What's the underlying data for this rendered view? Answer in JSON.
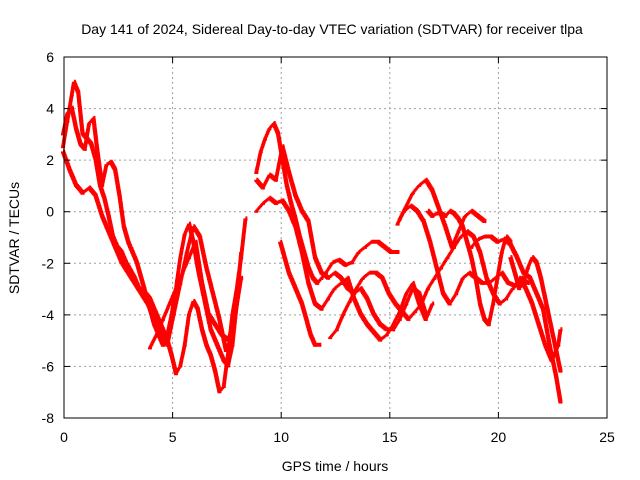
{
  "chart_data": {
    "type": "scatter",
    "title": "Day 141 of 2024, Sidereal Day-to-day VTEC variation (SDTVAR) for receiver tlpa",
    "xlabel": "GPS time / hours",
    "ylabel": "SDTVAR / TECUs",
    "xlim": [
      0,
      25
    ],
    "ylim": [
      -8,
      6
    ],
    "xticks": [
      0,
      5,
      10,
      15,
      20,
      25
    ],
    "yticks": [
      -8,
      -6,
      -4,
      -2,
      0,
      2,
      4,
      6
    ],
    "grid": true,
    "marker": "plus",
    "color": "#ff0000",
    "series": [
      {
        "name": "track-1",
        "x": [
          0.0,
          0.2,
          0.4,
          0.5,
          0.7,
          0.9,
          1.1,
          1.3,
          1.5,
          1.7,
          1.9,
          2.1,
          2.3,
          2.5,
          2.7,
          2.9,
          3.1,
          3.3,
          3.5,
          3.8,
          4.0,
          4.2,
          4.4,
          4.6,
          4.8,
          5.0,
          5.2,
          5.4,
          5.6,
          5.8,
          6.0,
          6.2,
          6.4,
          6.6,
          6.8,
          7.0,
          7.2,
          7.4,
          7.6,
          7.8,
          8.0,
          8.2,
          8.4
        ],
        "y": [
          2.5,
          3.5,
          4.5,
          5.0,
          4.6,
          3.0,
          2.8,
          2.6,
          2.0,
          1.0,
          0.5,
          -0.2,
          -1.0,
          -1.4,
          -1.6,
          -2.0,
          -2.3,
          -2.6,
          -3.0,
          -3.2,
          -3.4,
          -3.8,
          -4.2,
          -4.6,
          -5.0,
          -5.6,
          -6.3,
          -6.0,
          -5.2,
          -4.0,
          -3.5,
          -3.8,
          -4.6,
          -5.2,
          -5.6,
          -6.2,
          -7.0,
          -6.8,
          -5.5,
          -4.0,
          -3.0,
          -1.8,
          -0.3
        ]
      },
      {
        "name": "track-2",
        "x": [
          0.0,
          0.2,
          0.4,
          0.6,
          0.8,
          1.0,
          1.2,
          1.4,
          1.6,
          1.8,
          2.0,
          2.2,
          2.4,
          2.6,
          2.8,
          3.0,
          3.2,
          3.4,
          3.6,
          3.8,
          4.0,
          4.2,
          4.4,
          4.6,
          4.8,
          5.0,
          5.2,
          5.4,
          5.6,
          5.8,
          6.0,
          6.2,
          6.4,
          6.6,
          6.8,
          7.0,
          7.2,
          7.4,
          7.6,
          7.8,
          8.0,
          8.2
        ],
        "y": [
          3.0,
          3.8,
          4.0,
          3.2,
          2.6,
          2.4,
          3.4,
          3.6,
          2.2,
          1.0,
          1.8,
          1.9,
          1.6,
          0.6,
          -0.6,
          -1.2,
          -1.6,
          -2.0,
          -2.6,
          -3.2,
          -3.8,
          -4.4,
          -4.8,
          -5.2,
          -4.8,
          -4.0,
          -3.0,
          -1.8,
          -0.9,
          -0.5,
          -1.2,
          -2.2,
          -3.0,
          -3.8,
          -4.6,
          -5.0,
          -5.4,
          -5.8,
          -6.0,
          -5.2,
          -3.6,
          -1.6
        ]
      },
      {
        "name": "track-3",
        "x": [
          0.0,
          0.3,
          0.6,
          0.9,
          1.2,
          1.5,
          1.8,
          2.1,
          2.4,
          2.7,
          3.0,
          3.3,
          3.6,
          3.9,
          4.2,
          4.5,
          4.8,
          5.1,
          5.4,
          5.7,
          6.0,
          6.3,
          6.6,
          6.9,
          7.2,
          7.5,
          7.8,
          8.1
        ],
        "y": [
          2.3,
          1.6,
          1.0,
          0.7,
          0.9,
          0.6,
          -0.2,
          -0.8,
          -1.4,
          -2.0,
          -2.4,
          -2.8,
          -3.2,
          -3.6,
          -4.2,
          -4.8,
          -5.2,
          -4.0,
          -2.8,
          -1.6,
          -0.6,
          -1.0,
          -2.2,
          -3.2,
          -4.2,
          -5.4,
          -4.8,
          -2.4
        ]
      },
      {
        "name": "track-4",
        "x": [
          4.0,
          4.3,
          4.6,
          4.9,
          5.2,
          5.5,
          5.8,
          6.1,
          6.4,
          6.7,
          7.0,
          7.3,
          7.6,
          7.9,
          8.2
        ],
        "y": [
          -5.3,
          -4.8,
          -4.2,
          -3.6,
          -3.0,
          -2.4,
          -1.8,
          -1.2,
          -2.8,
          -4.0,
          -4.4,
          -4.8,
          -5.0,
          -4.2,
          -2.6
        ]
      },
      {
        "name": "track-5",
        "x": [
          8.9,
          9.1,
          9.3,
          9.5,
          9.7,
          9.9,
          10.1,
          10.3,
          10.5,
          10.7,
          10.9,
          11.1,
          11.3,
          11.5,
          11.7,
          11.9,
          12.1,
          12.4,
          12.7,
          13.0,
          13.3,
          13.6,
          13.9,
          14.2,
          14.5,
          14.8,
          15.1,
          15.4
        ],
        "y": [
          1.5,
          2.3,
          2.8,
          3.2,
          3.4,
          3.0,
          2.0,
          1.0,
          0.3,
          -0.3,
          -1.0,
          -1.6,
          -2.2,
          -2.6,
          -2.8,
          -2.6,
          -2.4,
          -2.0,
          -1.9,
          -2.1,
          -2.0,
          -1.6,
          -1.4,
          -1.2,
          -1.2,
          -1.4,
          -1.6,
          -1.6
        ]
      },
      {
        "name": "track-6",
        "x": [
          8.9,
          9.2,
          9.5,
          9.8,
          10.1,
          10.4,
          10.7,
          11.0,
          11.3,
          11.6,
          11.9,
          12.2,
          12.5,
          12.8,
          13.1,
          13.4,
          13.7,
          14.0,
          14.3,
          14.6,
          14.9,
          15.2,
          15.5,
          15.8,
          16.1,
          16.4,
          16.7
        ],
        "y": [
          1.2,
          0.9,
          1.4,
          1.2,
          2.5,
          1.5,
          0.6,
          0.0,
          -0.4,
          -1.8,
          -2.4,
          -2.6,
          -2.4,
          -2.6,
          -3.0,
          -3.2,
          -3.0,
          -3.4,
          -4.0,
          -4.4,
          -4.6,
          -4.6,
          -4.2,
          -3.6,
          -3.0,
          -3.2,
          -4.0
        ]
      },
      {
        "name": "track-7",
        "x": [
          8.9,
          9.2,
          9.5,
          9.8,
          10.1,
          10.4,
          10.7,
          11.0,
          11.3,
          11.6,
          11.9,
          12.2,
          12.5,
          12.8,
          13.1,
          13.4,
          13.7,
          14.0,
          14.3,
          14.6,
          14.9,
          15.2,
          15.5,
          15.8,
          16.1,
          16.4,
          16.7,
          17.0
        ],
        "y": [
          0.0,
          0.3,
          0.5,
          0.3,
          0.4,
          0.0,
          -0.6,
          -1.6,
          -2.8,
          -3.6,
          -3.8,
          -3.4,
          -3.0,
          -2.8,
          -2.6,
          -3.4,
          -4.0,
          -4.4,
          -4.7,
          -5.0,
          -4.8,
          -4.4,
          -3.9,
          -3.2,
          -2.8,
          -3.6,
          -4.2,
          -3.6
        ]
      },
      {
        "name": "track-8",
        "x": [
          10.0,
          10.2,
          10.4,
          10.6,
          10.8,
          11.0,
          11.2,
          11.4,
          11.6,
          11.8
        ],
        "y": [
          -1.2,
          -1.8,
          -2.4,
          -2.8,
          -3.2,
          -3.6,
          -4.2,
          -4.8,
          -5.2,
          -5.2
        ]
      },
      {
        "name": "track-9",
        "x": [
          12.3,
          12.6,
          12.9,
          13.2,
          13.5,
          13.8,
          14.1,
          14.4,
          14.7,
          15.0,
          15.3,
          15.6,
          15.9,
          16.2,
          16.5,
          16.8,
          17.1,
          17.4,
          17.7,
          18.0,
          18.3,
          18.6,
          18.9,
          19.2,
          19.5,
          19.8,
          20.1,
          20.4,
          20.7,
          21.0
        ],
        "y": [
          -4.9,
          -4.6,
          -4.0,
          -3.5,
          -3.0,
          -2.6,
          -2.4,
          -2.4,
          -2.6,
          -3.2,
          -3.6,
          -3.9,
          -4.2,
          -3.9,
          -3.6,
          -3.0,
          -2.6,
          -2.2,
          -1.8,
          -1.4,
          -1.0,
          -0.8,
          -1.0,
          -1.6,
          -2.6,
          -3.2,
          -3.6,
          -3.4,
          -3.0,
          -2.8
        ]
      },
      {
        "name": "track-10",
        "x": [
          15.4,
          15.7,
          16.0,
          16.3,
          16.6,
          16.9,
          17.2,
          17.5,
          17.8,
          18.1,
          18.4,
          18.7,
          19.0,
          19.3,
          19.6,
          19.9,
          20.2,
          20.5,
          20.8,
          21.1,
          21.4
        ],
        "y": [
          -0.5,
          0.0,
          0.2,
          0.0,
          -0.4,
          -1.2,
          -2.2,
          -3.2,
          -3.6,
          -3.2,
          -2.6,
          -2.4,
          -2.6,
          -2.8,
          -2.8,
          -2.6,
          -2.4,
          -2.8,
          -2.9,
          -2.6,
          -2.8
        ]
      },
      {
        "name": "track-11",
        "x": [
          15.5,
          15.8,
          16.1,
          16.4,
          16.7,
          17.0,
          17.3,
          17.6,
          17.9,
          18.2,
          18.5,
          18.8,
          19.1,
          19.4
        ],
        "y": [
          -0.3,
          0.2,
          0.7,
          1.0,
          1.2,
          0.8,
          0.1,
          -0.6,
          -1.4,
          -0.8,
          -0.2,
          0.0,
          -0.2,
          -0.4
        ]
      },
      {
        "name": "track-12",
        "x": [
          16.8,
          17.0,
          17.2,
          17.4,
          17.6,
          17.8,
          18.0,
          18.2,
          18.4,
          18.6,
          18.8,
          19.0,
          19.2,
          19.4,
          19.6,
          19.8,
          20.0,
          20.2,
          20.4,
          20.6
        ],
        "y": [
          0.0,
          -0.2,
          -0.1,
          -0.1,
          -0.2,
          0.0,
          -0.1,
          -0.3,
          -0.6,
          -1.2,
          -1.8,
          -2.6,
          -3.6,
          -4.2,
          -4.4,
          -3.6,
          -2.6,
          -1.6,
          -1.0,
          -1.2
        ]
      },
      {
        "name": "track-13",
        "x": [
          18.8,
          19.1,
          19.4,
          19.7,
          20.0,
          20.3,
          20.6,
          20.9,
          21.2,
          21.5,
          21.8,
          22.1,
          22.4,
          22.7,
          22.9
        ],
        "y": [
          -1.4,
          -1.1,
          -1.0,
          -1.0,
          -1.2,
          -1.1,
          -1.3,
          -1.8,
          -2.4,
          -2.6,
          -3.2,
          -3.8,
          -5.2,
          -6.4,
          -7.4
        ]
      },
      {
        "name": "track-14",
        "x": [
          20.6,
          20.8,
          21.0,
          21.2,
          21.4,
          21.6,
          21.8,
          22.0,
          22.2,
          22.4,
          22.6,
          22.8,
          22.9
        ],
        "y": [
          -1.8,
          -2.4,
          -3.0,
          -2.8,
          -2.2,
          -1.8,
          -2.0,
          -2.6,
          -3.4,
          -4.2,
          -5.0,
          -5.8,
          -6.2
        ]
      },
      {
        "name": "track-15",
        "x": [
          21.0,
          21.3,
          21.6,
          21.9,
          22.2,
          22.5,
          22.8,
          22.9
        ],
        "y": [
          -2.6,
          -3.0,
          -3.6,
          -4.4,
          -5.2,
          -5.8,
          -5.2,
          -4.6
        ]
      }
    ]
  }
}
